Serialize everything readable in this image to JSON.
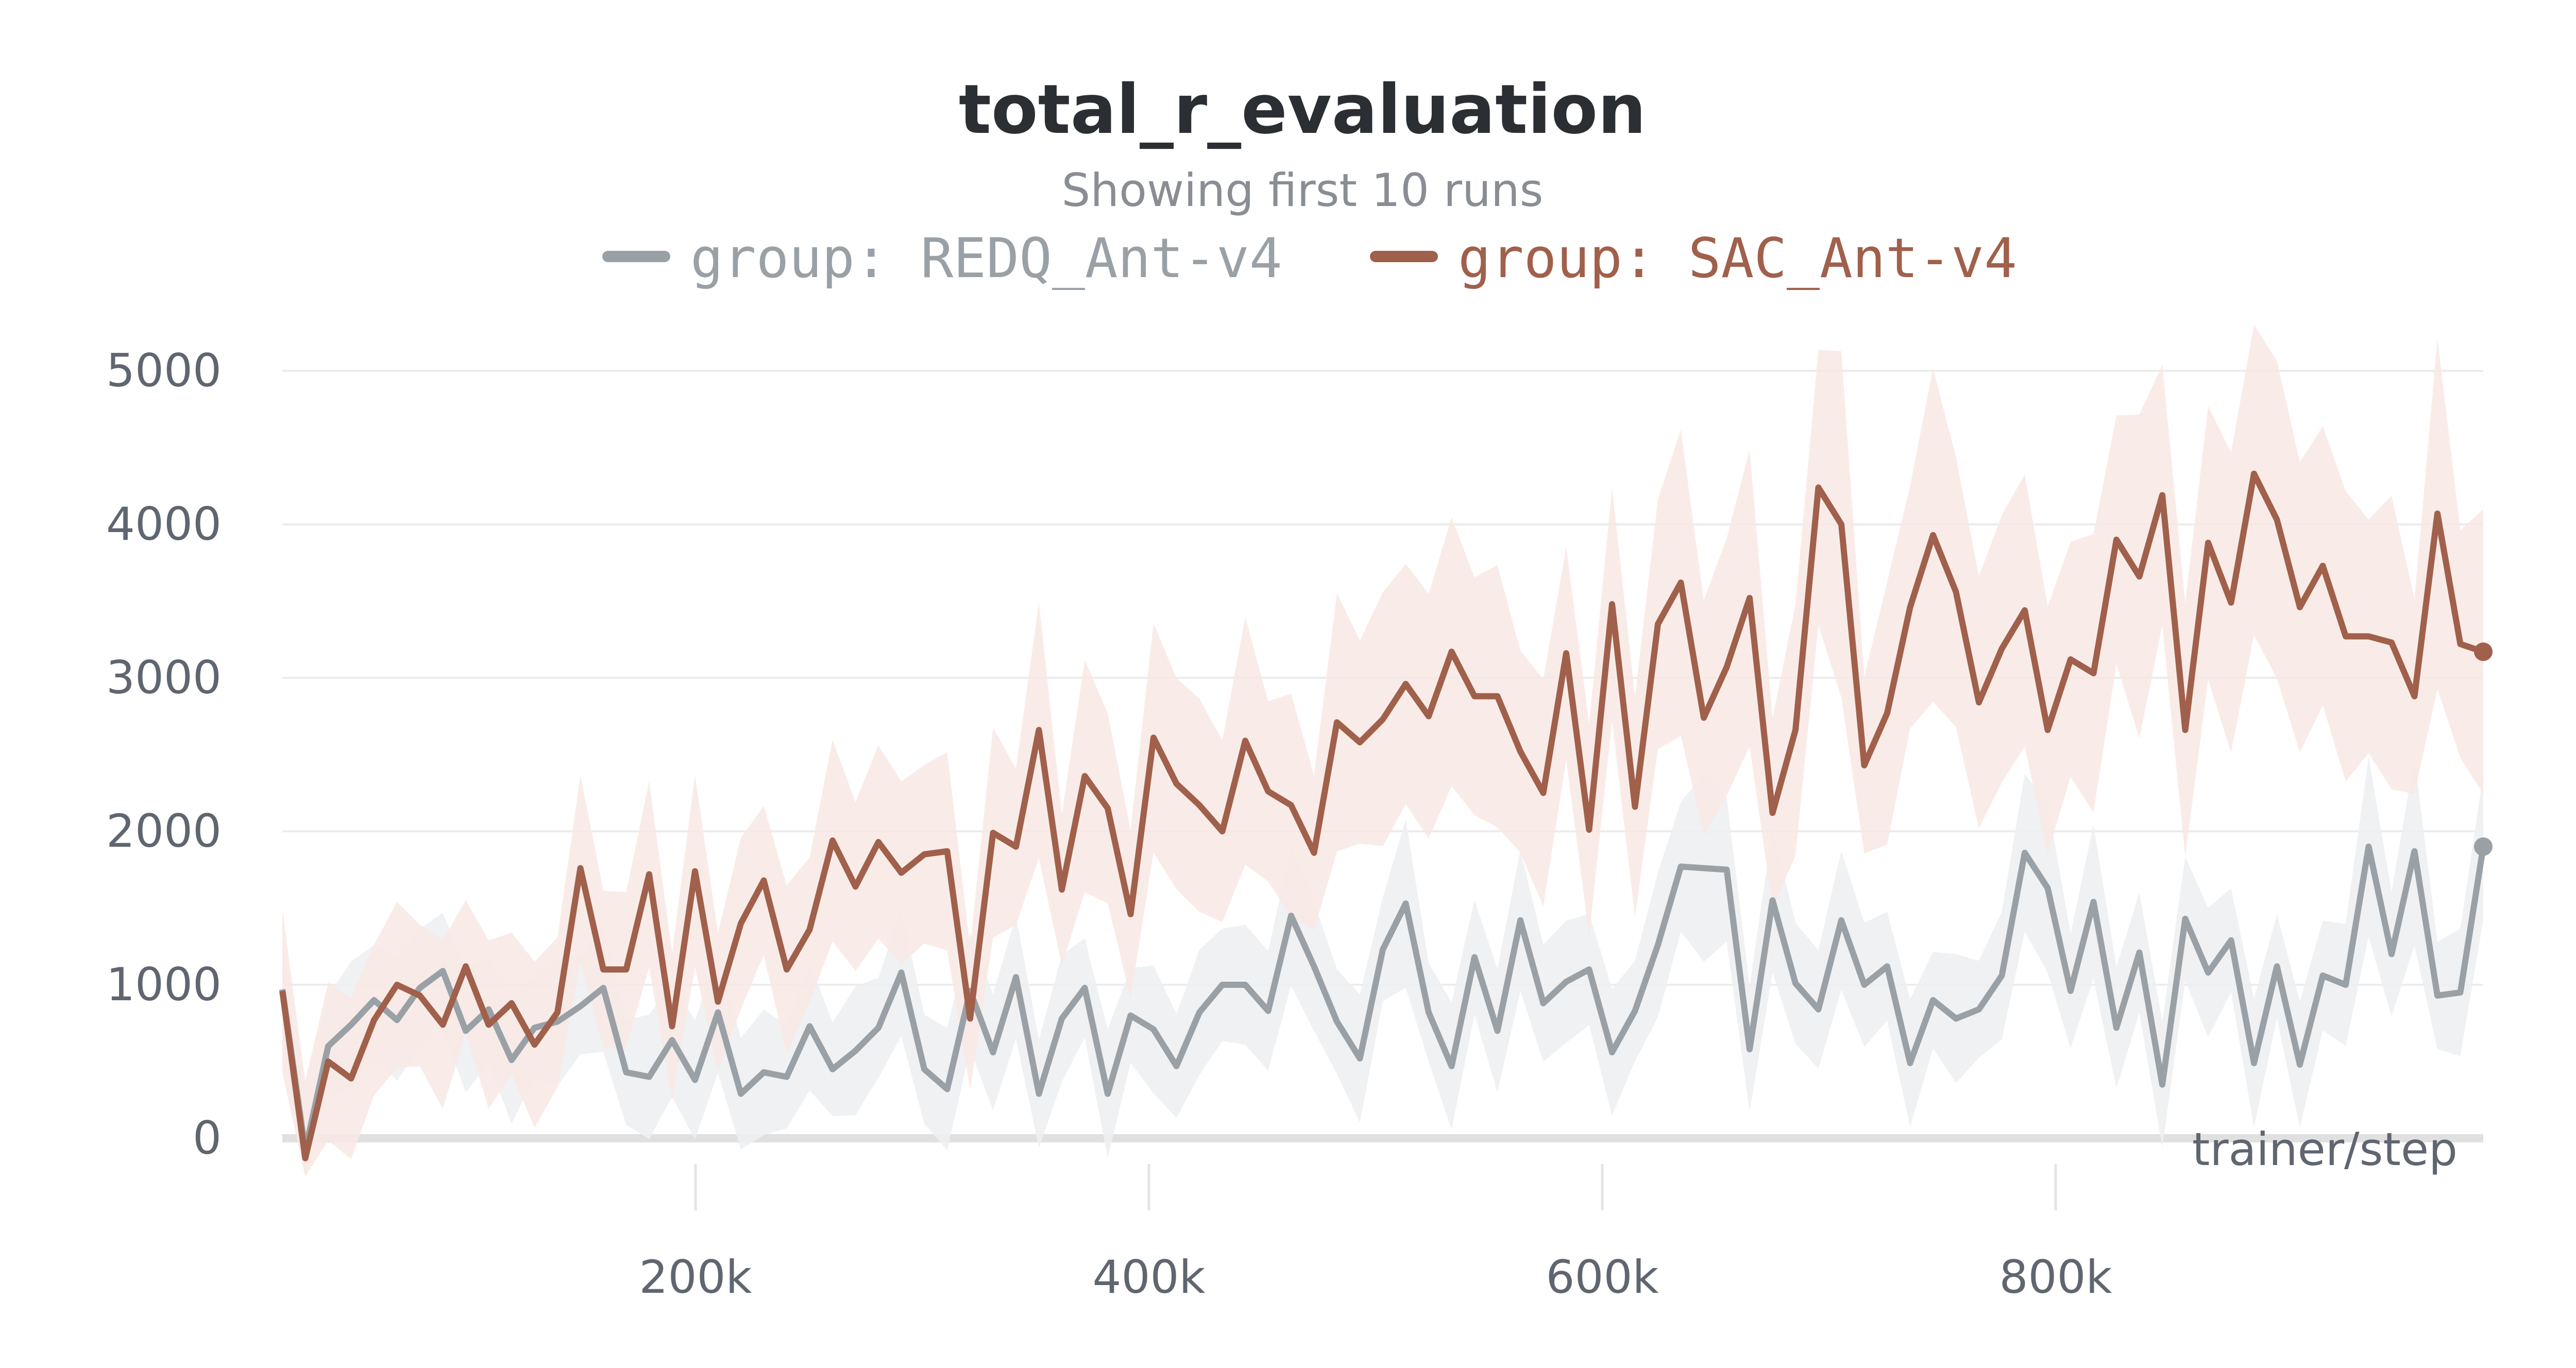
{
  "chart_data": {
    "type": "line",
    "title": "total_r_evaluation",
    "subtitle": "Showing first 10 runs",
    "xlabel": "trainer/step",
    "ylabel": "",
    "xlim": [
      0,
      980000
    ],
    "ylim": [
      -300,
      5300
    ],
    "x_ticks": [
      200000,
      400000,
      600000,
      800000
    ],
    "x_tick_labels": [
      "200k",
      "400k",
      "600k",
      "800k"
    ],
    "y_ticks": [
      0,
      1000,
      2000,
      3000,
      4000,
      5000
    ],
    "y_tick_labels": [
      "0",
      "1000",
      "2000",
      "3000",
      "4000",
      "5000"
    ],
    "grid": "horizontal",
    "legend_position": "top",
    "series": [
      {
        "name": "group: REDQ_Ant-v4",
        "color": "#9aa1a6",
        "values": [
          970,
          -80,
          600,
          740,
          900,
          770,
          980,
          1090,
          700,
          840,
          510,
          720,
          760,
          860,
          980,
          430,
          400,
          640,
          380,
          820,
          290,
          430,
          400,
          730,
          450,
          570,
          720,
          1080,
          450,
          320,
          960,
          560,
          1050,
          290,
          780,
          980,
          290,
          800,
          710,
          470,
          820,
          1000,
          1000,
          830,
          1450,
          1120,
          760,
          520,
          1230,
          1530,
          820,
          470,
          1180,
          700,
          1420,
          880,
          1020,
          1100,
          560,
          830,
          1260,
          1770,
          1760,
          1750,
          580,
          1550,
          1010,
          840,
          1420,
          1000,
          1120,
          490,
          900,
          780,
          840,
          1060,
          1860,
          1630,
          960,
          1540,
          720,
          1210,
          350,
          1430,
          1080,
          1290,
          490,
          1120,
          480,
          1060,
          1000,
          1900,
          1200,
          1870,
          930,
          950,
          1900
        ]
      },
      {
        "name": "group: SAC_Ant-v4",
        "color": "#a0604b",
        "values": [
          960,
          -130,
          500,
          390,
          770,
          1000,
          930,
          740,
          1120,
          740,
          880,
          610,
          820,
          1760,
          1100,
          1100,
          1720,
          730,
          1740,
          890,
          1400,
          1680,
          1100,
          1360,
          1940,
          1640,
          1930,
          1730,
          1850,
          1870,
          780,
          1990,
          1900,
          2660,
          1620,
          2360,
          2150,
          1460,
          2610,
          2310,
          2170,
          2000,
          2590,
          2260,
          2170,
          1860,
          2710,
          2580,
          2730,
          2960,
          2750,
          3170,
          2880,
          2880,
          2520,
          2250,
          3160,
          2010,
          3480,
          2160,
          3350,
          3620,
          2740,
          3070,
          3520,
          2120,
          2660,
          4240,
          4000,
          2430,
          2770,
          3460,
          3930,
          3560,
          2840,
          3190,
          3440,
          2660,
          3120,
          3030,
          3900,
          3660,
          4190,
          2660,
          3880,
          3490,
          4330,
          4030,
          3460,
          3730,
          3270,
          3270,
          3230,
          2880,
          4070,
          3220,
          3170
        ]
      }
    ]
  }
}
